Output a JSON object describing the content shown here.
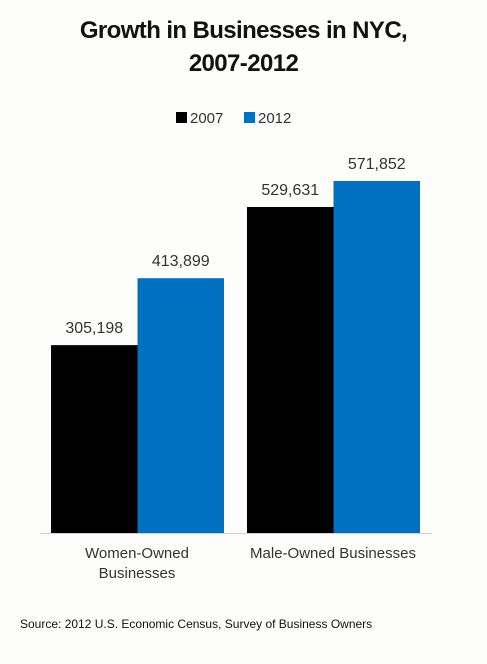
{
  "chart_data": {
    "type": "bar",
    "title": "Growth in Businesses in NYC, 2007-2012",
    "categories": [
      "Women-Owned Businesses",
      "Male-Owned Businesses"
    ],
    "series": [
      {
        "name": "2007",
        "color": "#000000",
        "values": [
          305198,
          529631
        ],
        "value_labels": [
          "305,198",
          "529,631"
        ]
      },
      {
        "name": "2012",
        "color": "#0070c0",
        "values": [
          413899,
          571852
        ],
        "value_labels": [
          "413,899",
          "571,852"
        ]
      }
    ],
    "source": "Source: 2012 U.S. Economic Census, Survey of Business Owners"
  }
}
